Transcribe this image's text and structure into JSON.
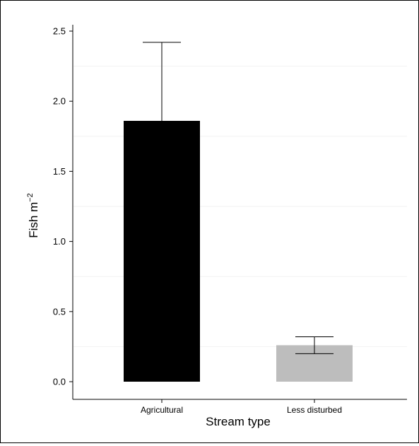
{
  "chart_data": {
    "type": "bar",
    "categories": [
      "Agricultural",
      "Less disturbed"
    ],
    "values": [
      1.86,
      0.26
    ],
    "error_upper": [
      2.42,
      0.32
    ],
    "error_lower": [
      1.86,
      0.2
    ],
    "ylim": [
      0,
      2.5
    ],
    "yticks": [
      "0.0",
      "0.5",
      "1.0",
      "1.5",
      "2.0",
      "2.5"
    ],
    "xlabel": "Stream type",
    "ylabel_base": "Fish m",
    "ylabel_exponent": "−2",
    "bar_colors": [
      "#000000",
      "#bdbdbd"
    ],
    "grid": "faint horizontal",
    "legend": "none"
  }
}
